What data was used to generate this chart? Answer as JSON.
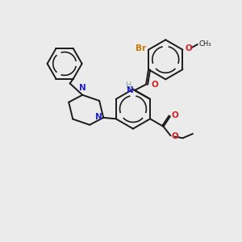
{
  "bg_color": "#ebebeb",
  "bond_color": "#1a1a1a",
  "bond_width": 1.4,
  "N_color": "#2222cc",
  "O_color": "#cc2222",
  "Br_color": "#cc7700",
  "H_color": "#7aabab",
  "figsize": [
    3.0,
    3.0
  ],
  "dpi": 100,
  "xlim": [
    0,
    10
  ],
  "ylim": [
    0,
    10
  ]
}
